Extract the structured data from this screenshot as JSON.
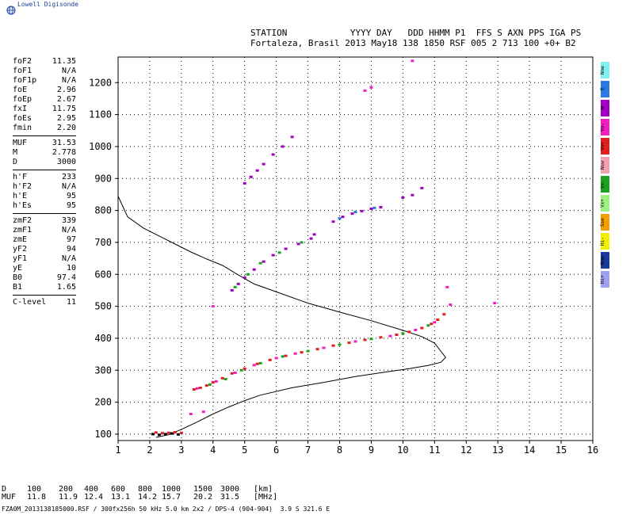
{
  "brand": "Lowell Digisonde",
  "header": {
    "line1": "STATION            YYYY DAY   DDD HHMM P1  FFS S AXN PPS IGA PS",
    "line2": "Fortaleza, Brasil 2013 May18 138 1850 RSF 005 2 713 100 +0+ B2"
  },
  "params": [
    [
      {
        "k": "foF2",
        "v": "11.35"
      },
      {
        "k": "foF1",
        "v": "N/A"
      },
      {
        "k": "foF1p",
        "v": "N/A"
      },
      {
        "k": "foE",
        "v": "2.96"
      },
      {
        "k": "foEp",
        "v": "2.67"
      },
      {
        "k": "fxI",
        "v": "11.75"
      },
      {
        "k": "foEs",
        "v": "2.95"
      },
      {
        "k": "fmin",
        "v": "2.20"
      }
    ],
    [
      {
        "k": "MUF",
        "v": "31.53"
      },
      {
        "k": "M",
        "v": "2.778"
      },
      {
        "k": "D",
        "v": "3000"
      }
    ],
    [
      {
        "k": "h'F",
        "v": "233"
      },
      {
        "k": "h'F2",
        "v": "N/A"
      },
      {
        "k": "h'E",
        "v": "95"
      },
      {
        "k": "h'Es",
        "v": "95"
      }
    ],
    [
      {
        "k": "zmF2",
        "v": "339"
      },
      {
        "k": "zmF1",
        "v": "N/A"
      },
      {
        "k": "zmE",
        "v": "97"
      },
      {
        "k": "yF2",
        "v": "94"
      },
      {
        "k": "yF1",
        "v": "N/A"
      },
      {
        "k": "yE",
        "v": "10"
      },
      {
        "k": "B0",
        "v": "97.4"
      },
      {
        "k": "B1",
        "v": "1.65"
      }
    ],
    [
      {
        "k": "C-level",
        "v": "11"
      }
    ]
  ],
  "polarization_legend": [
    {
      "label": "Nne",
      "color": "#7ff0f0"
    },
    {
      "label": "E",
      "color": "#2a7ae0"
    },
    {
      "label": "W",
      "color": "#a000c0"
    },
    {
      "label": "Vo-",
      "color": "#f020c0"
    },
    {
      "label": "Vo+",
      "color": "#e02020"
    },
    {
      "label": "Nsw",
      "color": "#f0a0b0"
    },
    {
      "label": "Vx-",
      "color": "#20a020"
    },
    {
      "label": "Vx+",
      "color": "#a0f080"
    },
    {
      "label": "Sse",
      "color": "#f0a000"
    },
    {
      "label": "Hi-",
      "color": "#f0f000"
    },
    {
      "label": "Nnw",
      "color": "#1a3a9a"
    },
    {
      "label": "Hi+",
      "color": "#a0a0f0"
    }
  ],
  "muf_table": {
    "d_label": "D",
    "muf_label": "MUF",
    "d_values": [
      "100",
      "200",
      "400",
      "600",
      "800",
      "1000",
      "1500",
      "3000"
    ],
    "muf_values": [
      "11.8",
      "11.9",
      "12.4",
      "13.1",
      "14.2",
      "15.7",
      "20.2",
      "31.5"
    ],
    "d_unit": "[km]",
    "muf_unit": "[MHz]"
  },
  "footer": "FZA0M_2013138185000.RSF / 300fx256h 50 kHz 5.0 km 2x2 / DPS-4 (904-904)  3.9 S 321.6 E",
  "chart_data": {
    "type": "scatter",
    "title": "",
    "xlabel": "",
    "ylabel": "",
    "xlim": [
      1,
      16
    ],
    "ylim": [
      80,
      1280
    ],
    "x_ticks": [
      "1",
      "2",
      "3",
      "4",
      "5",
      "6",
      "7",
      "8",
      "9",
      "10",
      "11",
      "12",
      "13",
      "14",
      "15",
      "16"
    ],
    "y_ticks": [
      "100",
      "200",
      "300",
      "400",
      "500",
      "600",
      "700",
      "800",
      "900",
      "1000",
      "1100",
      "1200"
    ],
    "grid": true,
    "traces": [
      {
        "name": "F-trace",
        "color": "#e02020",
        "points": [
          [
            3.4,
            240
          ],
          [
            3.6,
            245
          ],
          [
            3.8,
            252
          ],
          [
            4.0,
            262
          ],
          [
            4.3,
            275
          ],
          [
            4.6,
            290
          ],
          [
            5.0,
            305
          ],
          [
            5.4,
            320
          ],
          [
            5.8,
            332
          ],
          [
            6.3,
            345
          ],
          [
            6.8,
            356
          ],
          [
            7.3,
            366
          ],
          [
            7.8,
            377
          ],
          [
            8.3,
            386
          ],
          [
            8.8,
            395
          ],
          [
            9.3,
            403
          ],
          [
            9.8,
            411
          ],
          [
            10.2,
            420
          ],
          [
            10.6,
            432
          ],
          [
            10.9,
            445
          ],
          [
            11.1,
            458
          ],
          [
            11.3,
            475
          ]
        ]
      },
      {
        "name": "F-trace-green",
        "color": "#20a020",
        "points": [
          [
            3.9,
            255
          ],
          [
            4.4,
            272
          ],
          [
            4.9,
            300
          ],
          [
            5.5,
            322
          ],
          [
            6.2,
            343
          ],
          [
            7.0,
            360
          ],
          [
            8.0,
            380
          ],
          [
            9.0,
            398
          ],
          [
            10.0,
            415
          ],
          [
            10.8,
            440
          ]
        ]
      },
      {
        "name": "F-trace-magenta",
        "color": "#f020c0",
        "points": [
          [
            3.5,
            243
          ],
          [
            4.1,
            265
          ],
          [
            4.7,
            292
          ],
          [
            5.3,
            316
          ],
          [
            6.0,
            338
          ],
          [
            6.6,
            352
          ],
          [
            7.5,
            370
          ],
          [
            8.5,
            390
          ],
          [
            9.6,
            407
          ],
          [
            10.4,
            426
          ],
          [
            11.0,
            450
          ]
        ]
      },
      {
        "name": "2F-trace",
        "color": "#a000c0",
        "points": [
          [
            4.6,
            550
          ],
          [
            4.8,
            570
          ],
          [
            5.0,
            590
          ],
          [
            5.3,
            615
          ],
          [
            5.6,
            640
          ],
          [
            5.9,
            660
          ],
          [
            6.3,
            680
          ],
          [
            6.7,
            695
          ],
          [
            7.1,
            712
          ],
          [
            7.2,
            725
          ]
        ]
      },
      {
        "name": "2F-trace-green",
        "color": "#20a020",
        "points": [
          [
            4.7,
            560
          ],
          [
            5.1,
            600
          ],
          [
            5.5,
            635
          ],
          [
            6.1,
            668
          ],
          [
            6.8,
            700
          ]
        ]
      },
      {
        "name": "3F-trace",
        "color": "#a000c0",
        "points": [
          [
            7.8,
            765
          ],
          [
            8.1,
            780
          ],
          [
            8.4,
            790
          ],
          [
            8.7,
            798
          ],
          [
            9.0,
            805
          ],
          [
            9.3,
            810
          ],
          [
            10.0,
            840
          ],
          [
            10.3,
            848
          ],
          [
            10.6,
            870
          ]
        ]
      },
      {
        "name": "3F-trace-dark",
        "color": "#2a7ae0",
        "points": [
          [
            8.0,
            775
          ],
          [
            8.5,
            795
          ],
          [
            9.1,
            808
          ]
        ]
      },
      {
        "name": "4F-trace",
        "color": "#a000c0",
        "points": [
          [
            5.0,
            885
          ],
          [
            5.2,
            905
          ],
          [
            5.4,
            925
          ],
          [
            5.6,
            945
          ],
          [
            5.9,
            975
          ],
          [
            6.2,
            1000
          ],
          [
            6.5,
            1030
          ]
        ]
      },
      {
        "name": "E-trace",
        "color": "#e02020",
        "points": [
          [
            2.2,
            105
          ],
          [
            2.4,
            103
          ],
          [
            2.6,
            104
          ],
          [
            2.8,
            106
          ],
          [
            3.0,
            104
          ]
        ]
      },
      {
        "name": "Es-trace",
        "color": "#000000",
        "points": [
          [
            2.1,
            100
          ],
          [
            2.3,
            98
          ],
          [
            2.5,
            100
          ],
          [
            2.7,
            102
          ],
          [
            2.9,
            99
          ]
        ]
      },
      {
        "name": "scatter-pts",
        "color": "#f020c0",
        "points": [
          [
            3.3,
            163
          ],
          [
            3.7,
            170
          ],
          [
            4.0,
            500
          ],
          [
            10.3,
            1268
          ],
          [
            9.0,
            1185
          ],
          [
            8.8,
            1175
          ],
          [
            11.4,
            560
          ],
          [
            11.5,
            505
          ],
          [
            12.9,
            510
          ]
        ]
      }
    ],
    "profile": {
      "name": "electron-density-profile",
      "color": "#000000",
      "points": [
        [
          1.0,
          845
        ],
        [
          1.3,
          780
        ],
        [
          1.8,
          745
        ],
        [
          2.3,
          720
        ],
        [
          2.8,
          695
        ],
        [
          3.3,
          670
        ],
        [
          3.8,
          648
        ],
        [
          4.3,
          628
        ],
        [
          4.8,
          598
        ],
        [
          5.3,
          570
        ],
        [
          6.0,
          545
        ],
        [
          7.0,
          510
        ],
        [
          8.0,
          482
        ],
        [
          9.0,
          455
        ],
        [
          10.0,
          425
        ],
        [
          10.6,
          405
        ],
        [
          11.0,
          385
        ],
        [
          11.35,
          340
        ],
        [
          11.2,
          325
        ],
        [
          10.8,
          315
        ],
        [
          10.2,
          305
        ],
        [
          9.5,
          295
        ],
        [
          8.5,
          280
        ],
        [
          7.5,
          262
        ],
        [
          6.5,
          245
        ],
        [
          5.5,
          222
        ],
        [
          5.0,
          205
        ],
        [
          4.5,
          185
        ],
        [
          4.0,
          163
        ],
        [
          3.5,
          138
        ],
        [
          3.0,
          115
        ],
        [
          2.6,
          98
        ],
        [
          2.2,
          90
        ]
      ]
    }
  }
}
